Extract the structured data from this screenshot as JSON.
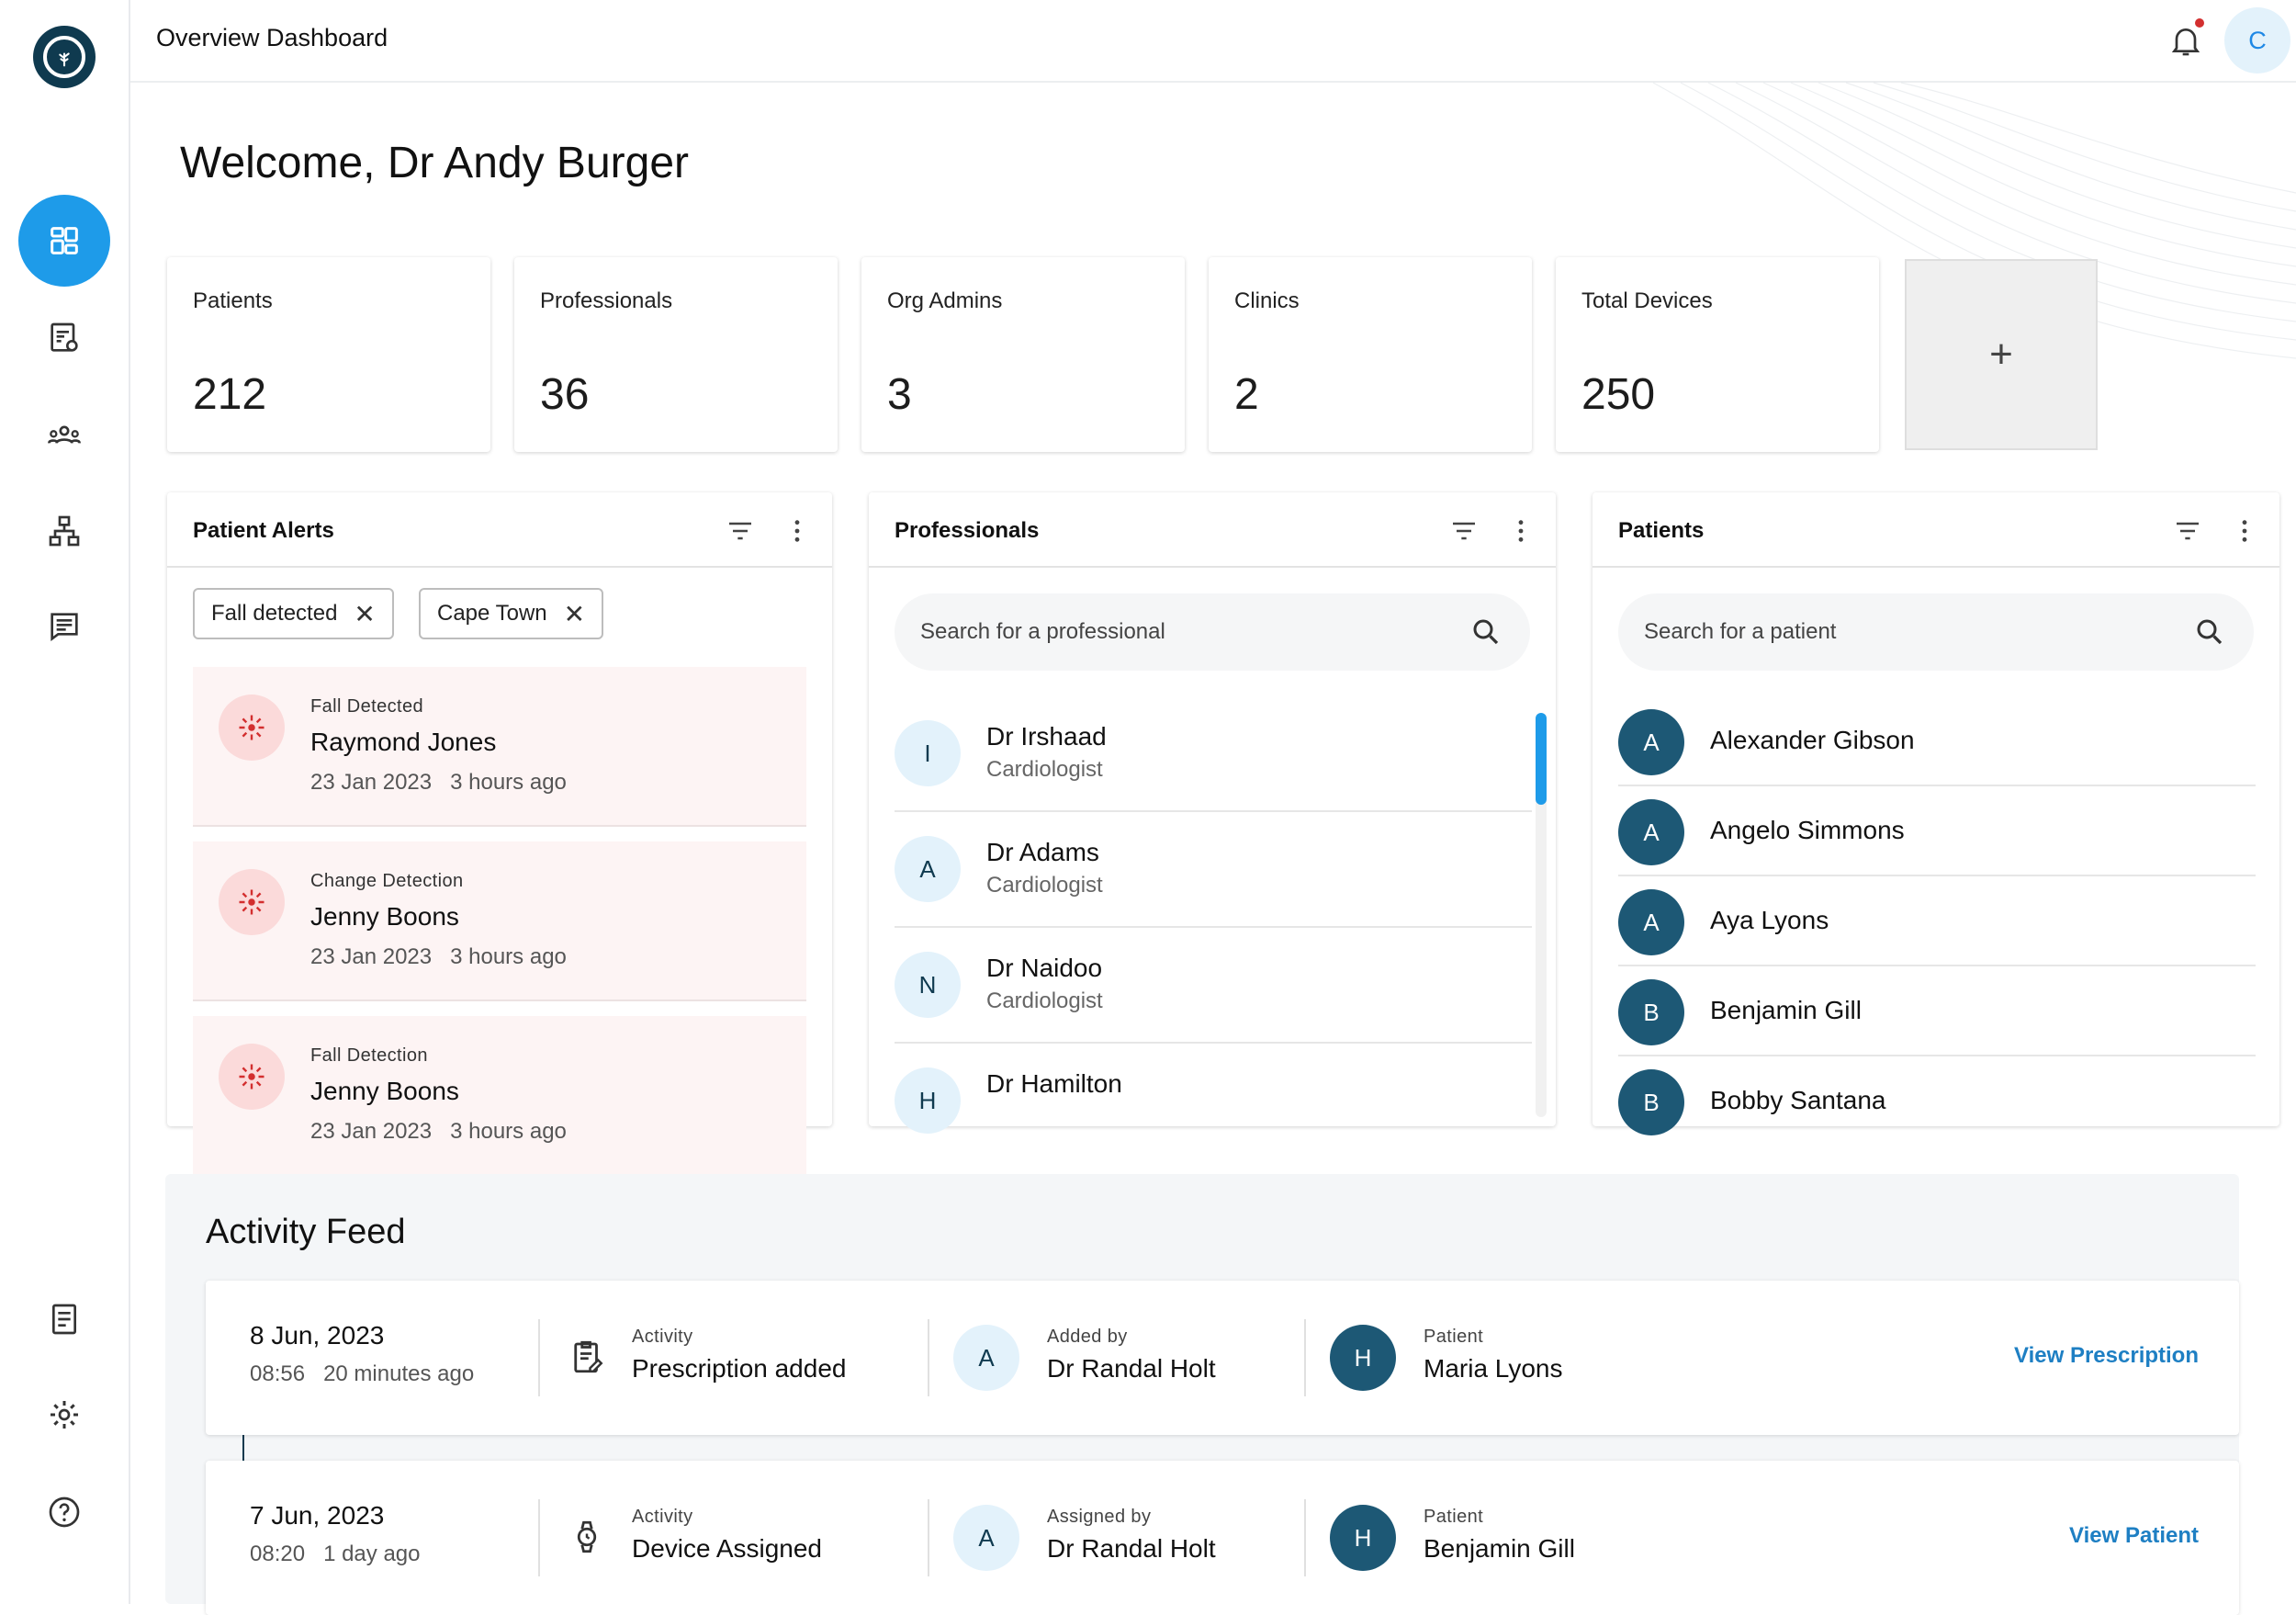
{
  "header": {
    "title": "Overview Dashboard",
    "user_initial": "C"
  },
  "welcome": "Welcome, Dr Andy Burger",
  "stats": [
    {
      "label": "Patients",
      "value": "212"
    },
    {
      "label": "Professionals",
      "value": "36"
    },
    {
      "label": "Org Admins",
      "value": "3"
    },
    {
      "label": "Clinics",
      "value": "2"
    },
    {
      "label": "Total Devices",
      "value": "250"
    }
  ],
  "add_card": "+",
  "alerts_panel": {
    "title": "Patient Alerts",
    "chips": [
      "Fall detected",
      "Cape Town"
    ],
    "items": [
      {
        "type": "Fall Detected",
        "name": "Raymond Jones",
        "date": "23 Jan 2023",
        "ago": "3 hours ago"
      },
      {
        "type": "Change Detection",
        "name": "Jenny Boons",
        "date": "23 Jan 2023",
        "ago": "3 hours ago"
      },
      {
        "type": "Fall Detection",
        "name": "Jenny Boons",
        "date": "23 Jan 2023",
        "ago": "3 hours ago"
      }
    ]
  },
  "professionals_panel": {
    "title": "Professionals",
    "search_placeholder": "Search for a professional",
    "items": [
      {
        "initial": "I",
        "name": "Dr Irshaad",
        "role": "Cardiologist"
      },
      {
        "initial": "A",
        "name": "Dr Adams",
        "role": "Cardiologist"
      },
      {
        "initial": "N",
        "name": "Dr Naidoo",
        "role": "Cardiologist"
      },
      {
        "initial": "H",
        "name": "Dr Hamilton",
        "role": ""
      }
    ]
  },
  "patients_panel": {
    "title": "Patients",
    "search_placeholder": "Search for a patient",
    "items": [
      {
        "initial": "A",
        "name": "Alexander Gibson"
      },
      {
        "initial": "A",
        "name": "Angelo Simmons"
      },
      {
        "initial": "A",
        "name": "Aya Lyons"
      },
      {
        "initial": "B",
        "name": "Benjamin Gill"
      },
      {
        "initial": "B",
        "name": "Bobby Santana"
      }
    ]
  },
  "feed": {
    "title": "Activity Feed",
    "items": [
      {
        "date": "8 Jun, 2023",
        "time": "08:56",
        "ago": "20 minutes ago",
        "activity_label": "Activity",
        "activity": "Prescription added",
        "by_label": "Added by",
        "by_initial": "A",
        "by": "Dr Randal Holt",
        "patient_label": "Patient",
        "patient_initial": "H",
        "patient": "Maria Lyons",
        "link": "View Prescription"
      },
      {
        "date": "7 Jun, 2023",
        "time": "08:20",
        "ago": "1 day ago",
        "activity_label": "Activity",
        "activity": "Device Assigned",
        "by_label": "Assigned by",
        "by_initial": "A",
        "by": "Dr Randal Holt",
        "patient_label": "Patient",
        "patient_initial": "H",
        "patient": "Benjamin Gill",
        "link": "View Patient"
      }
    ]
  },
  "colors": {
    "accent": "#1e9be9",
    "brand_dark": "#0f3a4f",
    "patient_avatar": "#1d5875",
    "alert_bg": "#fdf4f4",
    "alert_icon": "#d32f2f"
  }
}
